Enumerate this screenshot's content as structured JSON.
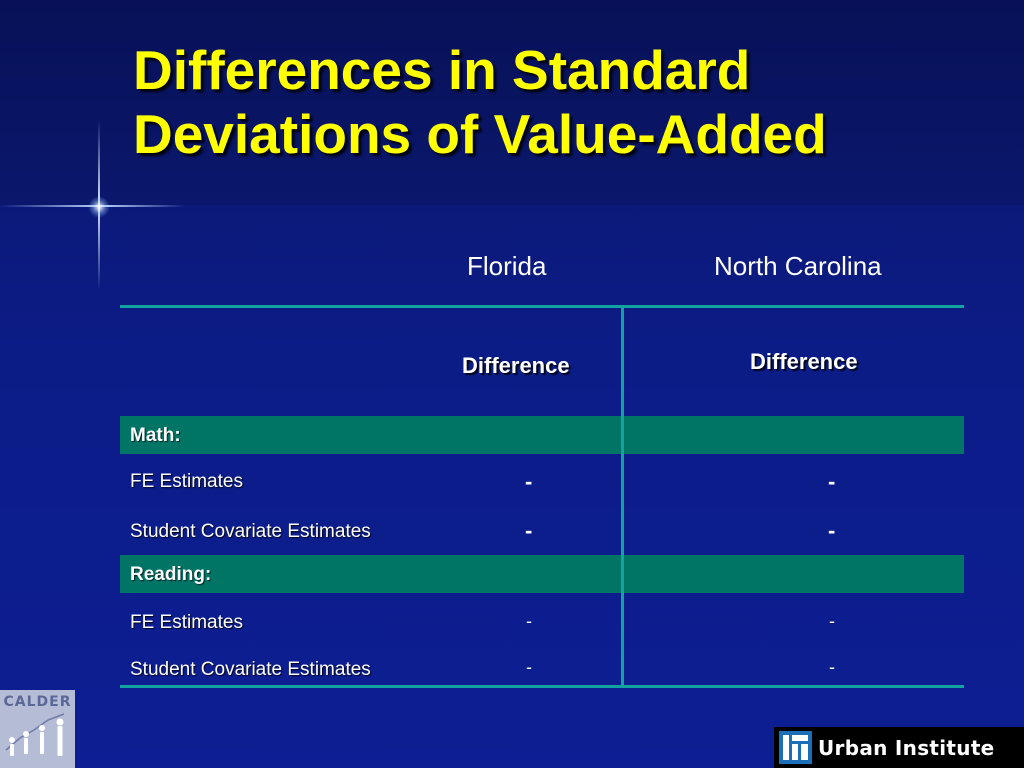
{
  "slide": {
    "title_line1": "Differences in Standard",
    "title_line2": "Deviations of Value-Added"
  },
  "table": {
    "columns": [
      "Florida",
      "North Carolina"
    ],
    "subheaders": [
      "Difference",
      "Difference"
    ],
    "sections": [
      {
        "label": "Math:",
        "rows": [
          {
            "label": "FE Estimates",
            "values": [
              "-",
              "-"
            ]
          },
          {
            "label": "Student Covariate Estimates",
            "values": [
              "-",
              "-"
            ]
          }
        ]
      },
      {
        "label": "Reading:",
        "rows": [
          {
            "label": "FE Estimates",
            "values": [
              "-",
              "-"
            ]
          },
          {
            "label": "Student Covariate Estimates",
            "values": [
              "-",
              "-"
            ]
          }
        ]
      }
    ]
  },
  "logos": {
    "calder": "CALDER",
    "urban": "Urban Institute"
  },
  "colors": {
    "background": "#0c1c86",
    "title": "#ffff00",
    "rule": "#12a3a0",
    "section_band": "#007566"
  }
}
